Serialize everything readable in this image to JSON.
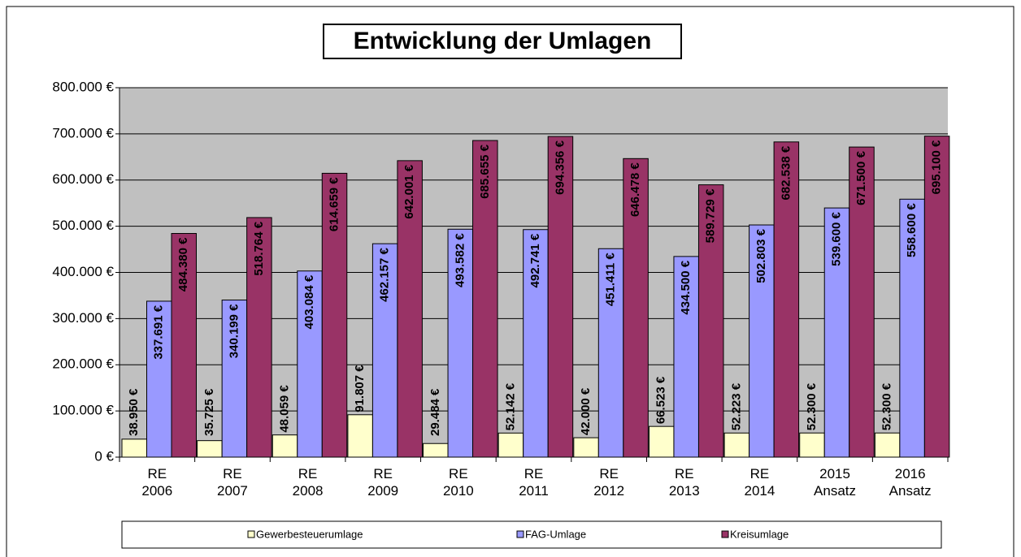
{
  "chart_data": {
    "type": "bar",
    "title": "Entwicklung der Umlagen",
    "categories": [
      "RE 2006",
      "RE 2007",
      "RE 2008",
      "RE 2009",
      "RE 2010",
      "RE 2011",
      "RE 2012",
      "RE 2013",
      "RE 2014",
      "2015 Ansatz",
      "2016 Ansatz"
    ],
    "series": [
      {
        "name": "Gewerbesteuerumlage",
        "color": "#ffffcc",
        "values": [
          38950,
          35725,
          48059,
          91807,
          29484,
          52142,
          42000,
          66523,
          52223,
          52300,
          52300
        ],
        "value_labels": [
          "38.950 €",
          "35.725 €",
          "48.059 €",
          "91.807 €",
          "29.484 €",
          "52.142 €",
          "42.000 €",
          "66.523 €",
          "52.223 €",
          "52.300 €",
          "52.300 €"
        ]
      },
      {
        "name": "FAG-Umlage",
        "color": "#9999ff",
        "values": [
          337691,
          340199,
          403084,
          462157,
          493582,
          492741,
          451411,
          434500,
          502803,
          539600,
          558600
        ],
        "value_labels": [
          "337.691 €",
          "340.199 €",
          "403.084 €",
          "462.157 €",
          "493.582 €",
          "492.741 €",
          "451.411 €",
          "434.500 €",
          "502.803 €",
          "539.600 €",
          "558.600 €"
        ]
      },
      {
        "name": "Kreisumlage",
        "color": "#993366",
        "values": [
          484380,
          518764,
          614659,
          642001,
          685655,
          694356,
          646478,
          589729,
          682538,
          671500,
          695100
        ],
        "value_labels": [
          "484.380 €",
          "518.764 €",
          "614.659 €",
          "642.001 €",
          "685.655 €",
          "694.356 €",
          "646.478 €",
          "589.729 €",
          "682.538 €",
          "671.500 €",
          "695.100 €"
        ]
      }
    ],
    "ylim": [
      0,
      800000
    ],
    "yticks": [
      {
        "value": 0,
        "label": "0 €"
      },
      {
        "value": 100000,
        "label": "100.000 €"
      },
      {
        "value": 200000,
        "label": "200.000 €"
      },
      {
        "value": 300000,
        "label": "300.000 €"
      },
      {
        "value": 400000,
        "label": "400.000 €"
      },
      {
        "value": 500000,
        "label": "500.000 €"
      },
      {
        "value": 600000,
        "label": "600.000 €"
      },
      {
        "value": 700000,
        "label": "700.000 €"
      },
      {
        "value": 800000,
        "label": "800.000 €"
      }
    ],
    "grid": true,
    "legend": "bottom"
  }
}
